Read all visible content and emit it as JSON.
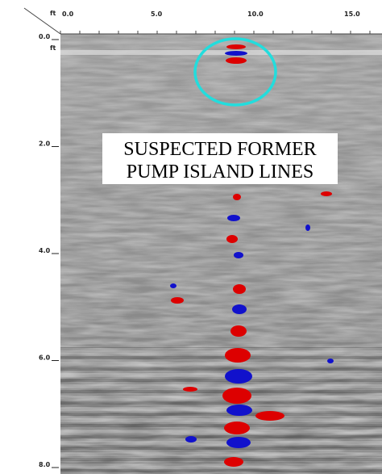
{
  "x_axis": {
    "unit": "ft",
    "ticks": [
      "0.0",
      "5.0",
      "10.0",
      "15.0"
    ]
  },
  "y_axis": {
    "unit": "ft",
    "ticks": [
      "0.0",
      "2.0",
      "4.0",
      "6.0",
      "8.0"
    ]
  },
  "annotation": {
    "lines": [
      "SUSPECTED FORMER",
      "PUMP ISLAND LINES"
    ]
  }
}
